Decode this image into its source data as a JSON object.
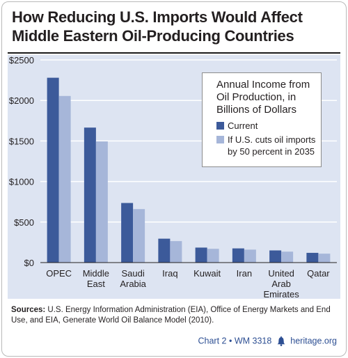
{
  "header": {
    "title": "How Reducing U.S. Imports Would Affect Middle Eastern Oil-Producing Countries"
  },
  "legend": {
    "title": "Annual Income from Oil Production, in Billions of Dollars",
    "current_label": "Current",
    "reduced_label": "If U.S. cuts oil imports by 50 percent in 2035"
  },
  "footer": {
    "sources_label": "Sources:",
    "sources_text": "U.S. Energy Information Administration (EIA), Office of Energy Markets and End Use, and EIA, Generate World Oil Balance Model (2010).",
    "chart_id": "Chart 2 • WM 3318",
    "site": "heritage.org"
  },
  "colors": {
    "current": "#3c5a9a",
    "reduced": "#a6b6d9",
    "plot_background": "#dde4f2",
    "gridline": "#ffffff",
    "credit": "#2d4f93"
  },
  "chart_data": {
    "type": "bar",
    "categories": [
      [
        "OPEC"
      ],
      [
        "Middle",
        "East"
      ],
      [
        "Saudi",
        "Arabia"
      ],
      [
        "Iraq"
      ],
      [
        "Kuwait"
      ],
      [
        "Iran"
      ],
      [
        "United",
        "Arab",
        "Emirates"
      ],
      [
        "Qatar"
      ]
    ],
    "series": [
      {
        "name": "Current",
        "values": [
          2280,
          1665,
          735,
          295,
          185,
          175,
          150,
          120
        ]
      },
      {
        "name": "If U.S. cuts oil imports by 50 percent in 2035",
        "values": [
          2055,
          1495,
          660,
          265,
          170,
          160,
          135,
          110
        ]
      }
    ],
    "title": "How Reducing U.S. Imports Would Affect Middle Eastern Oil-Producing Countries",
    "ylim": [
      0,
      2500
    ],
    "yticks": [
      0,
      500,
      1000,
      1500,
      2000,
      2500
    ],
    "ytick_labels": [
      "$0",
      "$500",
      "$1000",
      "$1500",
      "$2000",
      "$2500"
    ],
    "grid": true,
    "legend_position": "top-right"
  }
}
